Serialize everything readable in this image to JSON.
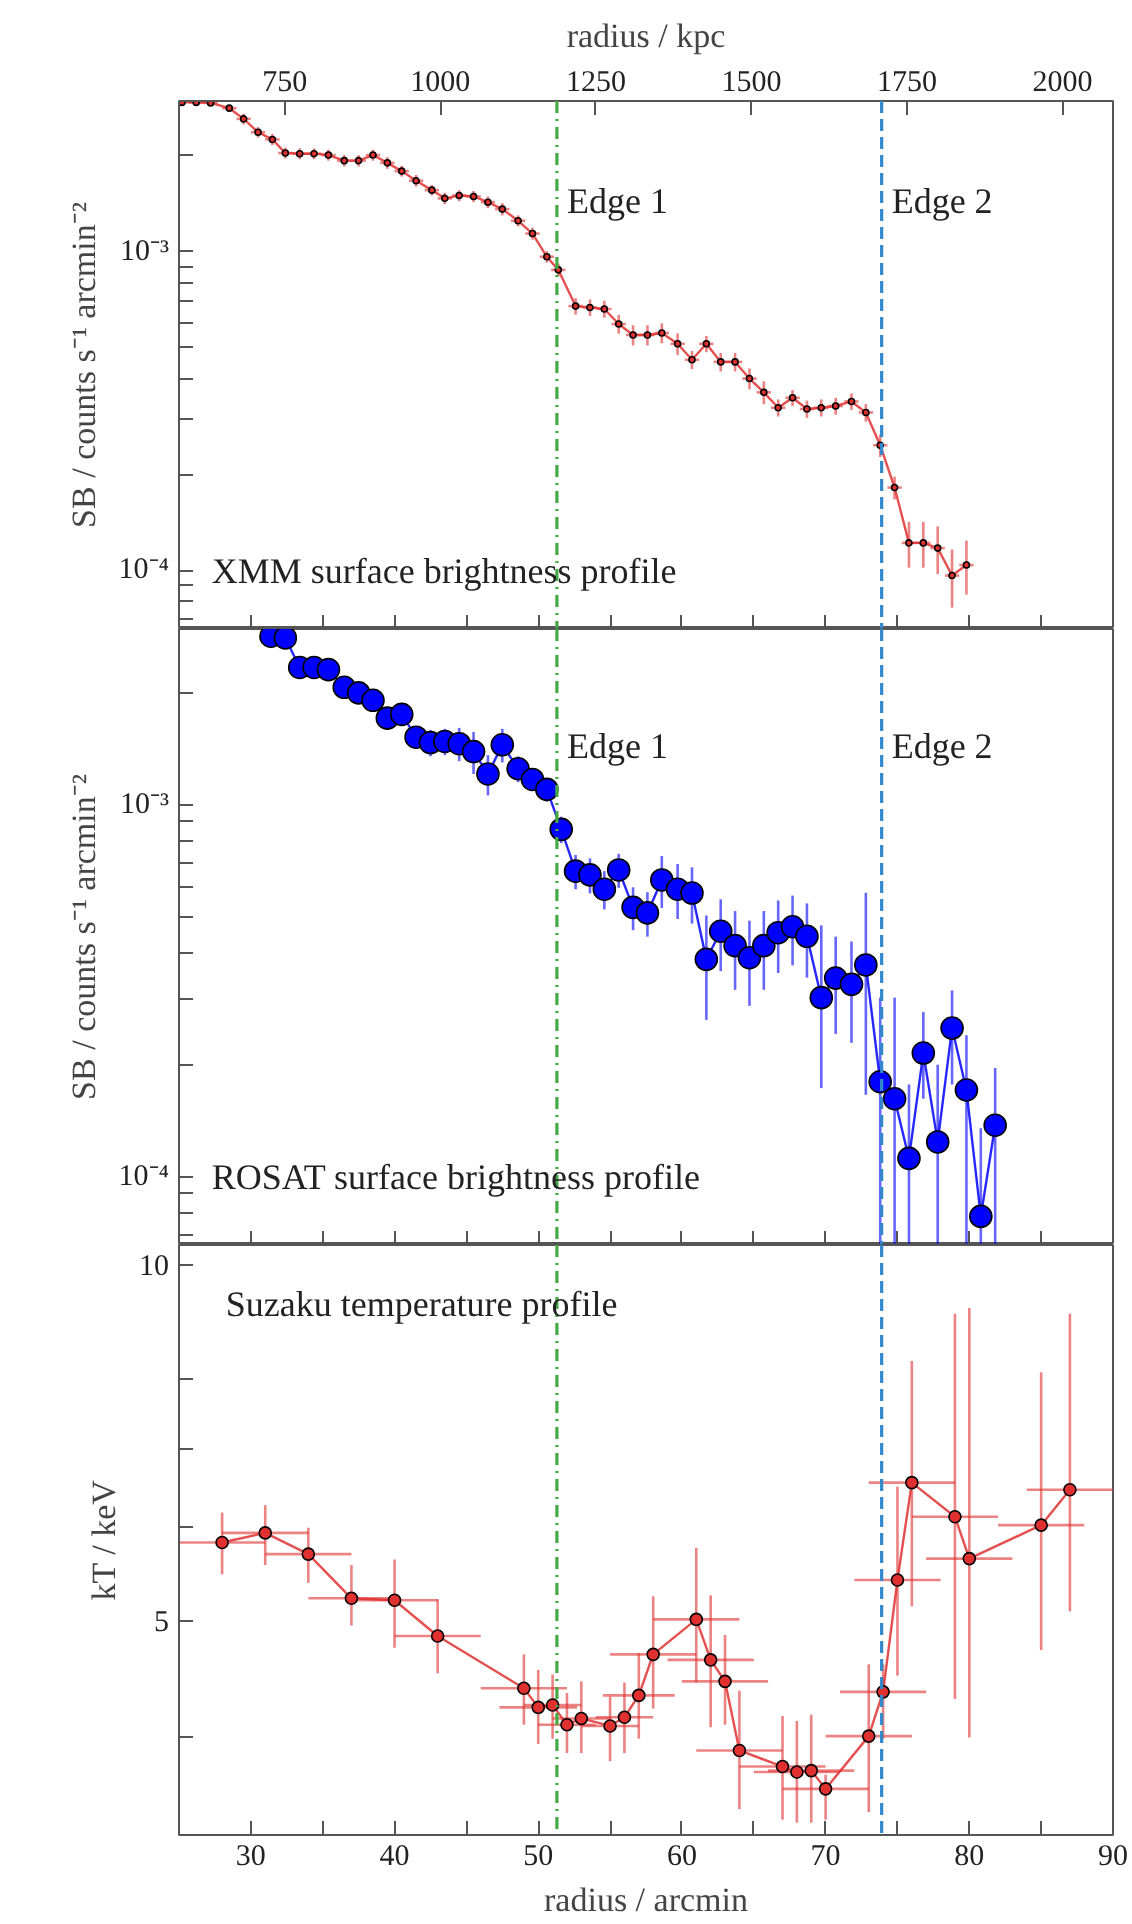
{
  "chart_data": [
    {
      "type": "line",
      "x2label": "radius / kpc",
      "ylabel": "SB / counts s⁻¹ arcmin⁻²",
      "log": "y",
      "grid": false,
      "marker": "circle",
      "line_style": "solid",
      "tick_labels": "y",
      "xlim": [
        25,
        90
      ],
      "xticks": [
        {
          "value": 30,
          "label": null
        },
        {
          "value": 35,
          "label": null
        },
        {
          "value": 40,
          "label": null
        },
        {
          "value": 45,
          "label": null
        },
        {
          "value": 50,
          "label": null
        },
        {
          "value": 55,
          "label": null
        },
        {
          "value": 60,
          "label": null
        },
        {
          "value": 65,
          "label": null
        },
        {
          "value": 70,
          "label": null
        },
        {
          "value": 75,
          "label": null
        },
        {
          "value": 80,
          "label": null
        },
        {
          "value": 85,
          "label": null
        }
      ],
      "x2lim": [
        580,
        2081
      ],
      "x2ticks": [
        750,
        1000,
        1250,
        1500,
        1750,
        2000
      ],
      "ylim": [
        6.55e-05,
        0.00297
      ],
      "yticks": [
        {
          "value": 7e-05,
          "label": null
        },
        {
          "value": 8e-05,
          "label": null
        },
        {
          "value": 9e-05,
          "label": null
        },
        {
          "value": 0.0001,
          "label": "10⁻⁴"
        },
        {
          "value": 0.0002,
          "label": null
        },
        {
          "value": 0.0003,
          "label": null
        },
        {
          "value": 0.0004,
          "label": null
        },
        {
          "value": 0.0005,
          "label": null
        },
        {
          "value": 0.0006,
          "label": null
        },
        {
          "value": 0.0007,
          "label": null
        },
        {
          "value": 0.0008,
          "label": null
        },
        {
          "value": 0.0009,
          "label": null
        },
        {
          "value": 0.001,
          "label": "10⁻³"
        },
        {
          "value": 0.002,
          "label": null
        }
      ],
      "ref_lines": [
        {
          "axis": "x",
          "value": 51.3,
          "label": "Edge 1",
          "color": "#44aa44",
          "line_style": "dashdot"
        },
        {
          "axis": "x",
          "value": 73.9,
          "label": "Edge 2",
          "color": "#3388cc",
          "line_style": "dashed"
        }
      ],
      "annotations": [
        "XMM surface brightness profile"
      ],
      "series": [
        {
          "color": "#e03030",
          "x": [
            25.2,
            26.2,
            27.2,
            28.5,
            29.5,
            30.5,
            31.5,
            32.4,
            33.4,
            34.4,
            35.4,
            36.5,
            37.5,
            38.5,
            39.5,
            40.5,
            41.5,
            42.6,
            43.5,
            44.5,
            45.5,
            46.5,
            47.5,
            48.6,
            49.6,
            50.6,
            51.4,
            52.6,
            53.6,
            54.6,
            55.6,
            56.6,
            57.6,
            58.6,
            59.7,
            60.7,
            61.7,
            62.7,
            63.7,
            64.7,
            65.7,
            66.7,
            67.7,
            68.7,
            69.7,
            70.7,
            71.8,
            72.8,
            73.8,
            74.8,
            75.8,
            76.8,
            77.8,
            78.8,
            79.8
          ],
          "values": [
            0.00294,
            0.00294,
            0.00293,
            0.00282,
            0.00261,
            0.00237,
            0.00225,
            0.00204,
            0.00203,
            0.00203,
            0.00201,
            0.00193,
            0.00193,
            0.00201,
            0.0019,
            0.00179,
            0.00167,
            0.00156,
            0.00147,
            0.0015,
            0.00149,
            0.00143,
            0.00136,
            0.00125,
            0.00114,
            0.000964,
            0.000877,
            0.000675,
            0.000668,
            0.000661,
            0.000593,
            0.000548,
            0.000548,
            0.000556,
            0.000514,
            0.000458,
            0.000514,
            0.000451,
            0.000451,
            0.0004,
            0.000362,
            0.000324,
            0.000348,
            0.000321,
            0.000324,
            0.000328,
            0.000339,
            0.000313,
            0.000247,
            0.000182,
            0.000122,
            0.000122,
            0.0001175,
            9.64e-05,
            0.000104
          ],
          "errors": [
            3e-05,
            3e-05,
            3e-05,
            3e-05,
            0.0001,
            9e-05,
            9e-05,
            8e-05,
            8e-05,
            8e-05,
            8e-05,
            8e-05,
            8e-05,
            8e-05,
            8e-05,
            7e-05,
            7e-05,
            6e-05,
            6e-05,
            6e-05,
            6e-05,
            6e-05,
            6e-05,
            5e-05,
            5e-05,
            4e-05,
            4e-05,
            4e-05,
            4e-05,
            4e-05,
            4e-05,
            4e-05,
            4e-05,
            4e-05,
            4e-05,
            3e-05,
            3e-05,
            3e-05,
            3e-05,
            3e-05,
            3e-05,
            2e-05,
            2e-05,
            2e-05,
            2e-05,
            2e-05,
            2e-05,
            2e-05,
            2e-05,
            1.5e-05,
            2e-05,
            2e-05,
            2e-05,
            2e-05,
            2e-05
          ],
          "xerrors": [
            0.2,
            0.5,
            0.5,
            0.5,
            0.5,
            0.5,
            0.5,
            0.5,
            0.5,
            0.5,
            0.5,
            0.5,
            0.5,
            0.5,
            0.5,
            0.5,
            0.5,
            0.5,
            0.5,
            0.5,
            0.5,
            0.5,
            0.5,
            0.5,
            0.5,
            0.5,
            0.5,
            0.5,
            0.5,
            0.5,
            0.5,
            0.5,
            0.5,
            0.5,
            0.5,
            0.5,
            0.5,
            0.5,
            0.5,
            0.5,
            0.5,
            0.5,
            0.5,
            0.5,
            0.5,
            0.5,
            0.5,
            0.5,
            0.5,
            0.5,
            0.5,
            0.5,
            0.5,
            0.5,
            0.5
          ]
        }
      ]
    },
    {
      "type": "line",
      "ylabel": "SB / counts s⁻¹ arcmin⁻²",
      "log": "y",
      "grid": false,
      "marker": "circle",
      "line_style": "solid",
      "tick_labels": "y",
      "xlim": [
        25,
        90
      ],
      "xticks": [
        {
          "value": 30,
          "label": null
        },
        {
          "value": 35,
          "label": null
        },
        {
          "value": 40,
          "label": null
        },
        {
          "value": 45,
          "label": null
        },
        {
          "value": 50,
          "label": null
        },
        {
          "value": 55,
          "label": null
        },
        {
          "value": 60,
          "label": null
        },
        {
          "value": 65,
          "label": null
        },
        {
          "value": 70,
          "label": null
        },
        {
          "value": 75,
          "label": null
        },
        {
          "value": 80,
          "label": null
        },
        {
          "value": 85,
          "label": null
        }
      ],
      "ylim": [
        6.55e-05,
        0.00297
      ],
      "yticks": [
        {
          "value": 7e-05,
          "label": null
        },
        {
          "value": 8e-05,
          "label": null
        },
        {
          "value": 9e-05,
          "label": null
        },
        {
          "value": 0.0001,
          "label": "10⁻⁴"
        },
        {
          "value": 0.0002,
          "label": null
        },
        {
          "value": 0.0003,
          "label": null
        },
        {
          "value": 0.0004,
          "label": null
        },
        {
          "value": 0.0005,
          "label": null
        },
        {
          "value": 0.0006,
          "label": null
        },
        {
          "value": 0.0007,
          "label": null
        },
        {
          "value": 0.0008,
          "label": null
        },
        {
          "value": 0.0009,
          "label": null
        },
        {
          "value": 0.001,
          "label": "10⁻³"
        },
        {
          "value": 0.002,
          "label": null
        }
      ],
      "ref_lines": [
        {
          "axis": "x",
          "value": 51.3,
          "label": "Edge 1",
          "color": "#44aa44",
          "line_style": "dashdot"
        },
        {
          "axis": "x",
          "value": 73.9,
          "label": "Edge 2",
          "color": "#3388cc",
          "line_style": "dashed"
        }
      ],
      "annotations": [
        "ROSAT surface brightness profile"
      ],
      "series": [
        {
          "color": "#0000ff",
          "x": [
            31.4,
            32.4,
            33.4,
            34.4,
            35.4,
            36.5,
            37.5,
            38.5,
            39.5,
            40.5,
            41.5,
            42.5,
            43.5,
            44.5,
            45.5,
            46.5,
            47.5,
            48.6,
            49.6,
            50.6,
            51.6,
            52.6,
            53.6,
            54.6,
            55.6,
            56.6,
            57.6,
            58.6,
            59.7,
            60.7,
            61.7,
            62.7,
            63.7,
            64.7,
            65.7,
            66.7,
            67.7,
            68.7,
            69.7,
            70.7,
            71.8,
            72.8,
            73.8,
            74.8,
            75.8,
            76.8,
            77.8,
            78.8,
            79.8,
            80.8,
            81.8
          ],
          "values": [
            0.00284,
            0.00281,
            0.00234,
            0.00234,
            0.00231,
            0.00207,
            0.002,
            0.00191,
            0.00171,
            0.00175,
            0.00152,
            0.00147,
            0.00148,
            0.00146,
            0.00139,
            0.00121,
            0.00145,
            0.00125,
            0.00117,
            0.0011,
            0.000859,
            0.000663,
            0.000648,
            0.000593,
            0.000668,
            0.00053,
            0.000512,
            0.000628,
            0.000593,
            0.000579,
            0.000384,
            0.000457,
            0.000418,
            0.000388,
            0.000418,
            0.000453,
            0.00047,
            0.000443,
            0.000303,
            0.000342,
            0.000329,
            0.000371,
            0.00018,
            0.000162,
            0.000112,
            0.000215,
            0.000124,
            0.000251,
            0.000171,
            7.82e-05,
            0.0001375
          ],
          "errors": [
            0.0001,
            0.0001,
            0.0001,
            0.0001,
            0.0001,
            0.0001,
            0.0001,
            0.0001,
            0.0001,
            0.0001,
            0.0001,
            0.00012,
            0.00012,
            0.00015,
            0.00018,
            0.00015,
            0.00015,
            0.0001,
            8e-05,
            8e-05,
            7e-05,
            7e-05,
            7e-05,
            7e-05,
            7e-05,
            7e-05,
            7e-05,
            0.0001,
            0.0001,
            0.0001,
            0.00012,
            0.0001,
            0.0001,
            0.0001,
            0.0001,
            0.0001,
            0.0001,
            0.0001,
            [
              0.000173,
              0.000474
            ],
            0.0001,
            0.0001,
            [
              0.000166,
              0.00058
            ],
            [
              6.6e-05,
              0.000303
            ],
            [
              6.6e-05,
              0.000303
            ],
            [
              6.6e-05,
              0.000177
            ],
            [
              0.000162,
              0.000277
            ],
            [
              6.6e-05,
              0.0002
            ],
            [
              0.000177,
              0.000317
            ],
            [
              6.6e-05,
              0.00024
            ],
            [
              6.6e-05,
              0.000135
            ],
            [
              6.6e-05,
              0.000196
            ]
          ]
        }
      ]
    },
    {
      "type": "line",
      "xlabel": "radius / arcmin",
      "ylabel": "kT / keV",
      "log": "y",
      "grid": false,
      "marker": "circle",
      "line_style": "solid",
      "xlim": [
        25,
        90
      ],
      "xticks": [
        30,
        {
          "value": 35,
          "label": null
        },
        40,
        {
          "value": 45,
          "label": null
        },
        50,
        {
          "value": 55,
          "label": null
        },
        60,
        {
          "value": 65,
          "label": null
        },
        70,
        {
          "value": 75,
          "label": null
        },
        80,
        {
          "value": 85,
          "label": null
        },
        90
      ],
      "ylim": [
        3.3,
        10.4
      ],
      "yticks": [
        {
          "value": 4,
          "label": null
        },
        5,
        {
          "value": 6,
          "label": null
        },
        {
          "value": 7,
          "label": null
        },
        {
          "value": 8,
          "label": null
        },
        10
      ],
      "ref_lines": [
        {
          "axis": "x",
          "value": 51.3,
          "color": "#44aa44",
          "line_style": "dashdot"
        },
        {
          "axis": "x",
          "value": 73.9,
          "color": "#3388cc",
          "line_style": "dashed"
        }
      ],
      "annotations": [
        "Suzaku temperature profile"
      ],
      "series": [
        {
          "color": "#e03030",
          "x": [
            28,
            31,
            34,
            37,
            40,
            43,
            49,
            50,
            51,
            52,
            53,
            55,
            56,
            57,
            58,
            61,
            62,
            63,
            64,
            67,
            68,
            69,
            70,
            73,
            74,
            75,
            76,
            79,
            80,
            85,
            87
          ],
          "values": [
            5.83,
            5.94,
            5.7,
            5.23,
            5.21,
            4.86,
            4.39,
            4.23,
            4.25,
            4.09,
            4.14,
            4.08,
            4.15,
            4.33,
            4.69,
            5.02,
            4.64,
            4.45,
            3.89,
            3.77,
            3.73,
            3.74,
            3.61,
            4.0,
            4.36,
            5.42,
            6.55,
            6.13,
            5.65,
            6.03,
            6.46
          ],
          "errors": [
            [
              5.48,
              6.18
            ],
            [
              5.58,
              6.27
            ],
            [
              5.39,
              6.0
            ],
            [
              4.96,
              5.58
            ],
            [
              4.75,
              5.64
            ],
            [
              4.52,
              5.22
            ],
            [
              4.09,
              4.69
            ],
            [
              3.94,
              4.55
            ],
            [
              3.98,
              4.51
            ],
            [
              3.87,
              4.35
            ],
            [
              3.87,
              4.45
            ],
            [
              3.81,
              4.32
            ],
            [
              3.87,
              4.44
            ],
            [
              3.98,
              4.7
            ],
            [
              4.22,
              5.25
            ],
            [
              4.44,
              5.77
            ],
            [
              4.07,
              5.26
            ],
            [
              4.09,
              4.87
            ],
            [
              3.47,
              4.37
            ],
            [
              3.4,
              4.16
            ],
            [
              3.38,
              4.12
            ],
            [
              3.38,
              4.17
            ],
            [
              3.4,
              3.71
            ],
            [
              3.45,
              4.6
            ],
            [
              3.98,
              4.6
            ],
            [
              4.5,
              6.5
            ],
            [
              5.15,
              8.3
            ],
            [
              4.3,
              9.1
            ],
            [
              3.99,
              9.2
            ],
            [
              4.73,
              8.12
            ],
            [
              5.1,
              9.1
            ]
          ],
          "xerrors": [
            3,
            3,
            3,
            3,
            3,
            3,
            3,
            2.7,
            2,
            2,
            2,
            2,
            2,
            2.5,
            3,
            3,
            3,
            3,
            3,
            3,
            3,
            3,
            3,
            3,
            3,
            3,
            3,
            3,
            3,
            3,
            3
          ]
        }
      ]
    }
  ]
}
